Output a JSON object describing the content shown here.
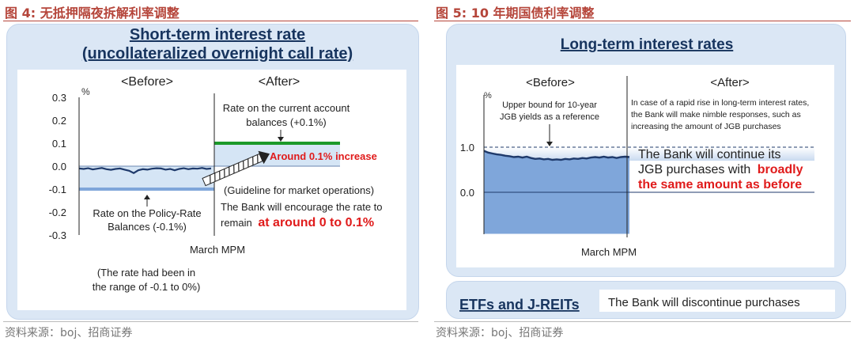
{
  "figures": [
    {
      "number_label": "图 4:",
      "caption": "无抵押隔夜拆解利率调整",
      "source": "资料来源：boj、招商证券"
    },
    {
      "number_label": "图 5:",
      "caption": "10 年期国债利率调整",
      "source": "资料来源：boj、招商证券"
    }
  ],
  "chart_data": [
    {
      "type": "line",
      "title_line1": "Short-term interest rate",
      "title_line2": "(uncollateralized overnight call rate)",
      "ylabel": "%",
      "ylim": [
        -0.3,
        0.3
      ],
      "yticks": [
        "0.3",
        "0.2",
        "0.1",
        "0.0",
        "-0.1",
        "-0.2",
        "-0.3"
      ],
      "xlabel": "March MPM",
      "section_before": "<Before>",
      "section_after": "<After>",
      "series": [
        {
          "values": [
            -0.01,
            -0.012,
            -0.009,
            -0.014,
            -0.011,
            -0.008,
            -0.013,
            -0.016,
            -0.012,
            -0.01,
            -0.015,
            -0.02,
            -0.03,
            -0.018,
            -0.013,
            -0.015,
            -0.011,
            -0.009,
            -0.01,
            -0.015,
            -0.012,
            -0.018,
            -0.012,
            -0.009,
            -0.013,
            -0.01,
            -0.011,
            -0.008,
            -0.012,
            -0.01
          ]
        }
      ],
      "before_range": [
        -0.1,
        0.0
      ],
      "after_range": [
        0.0,
        0.1
      ],
      "current_account_rate": 0.1,
      "policy_rate": -0.1,
      "annotations": {
        "current_account_l1": "Rate on the current account",
        "current_account_l2": "balances (+0.1%)",
        "increase": "Around 0.1% increase",
        "policy_l1": "Rate on the Policy-Rate",
        "policy_l2": "Balances (-0.1%)",
        "guideline": "(Guideline for market operations)",
        "encourage_l1": "The Bank will encourage the rate to",
        "encourage_l2_prefix": "remain",
        "encourage_l2_emph": "at around 0 to 0.1%",
        "range_note_l1": "(The rate had been in",
        "range_note_l2": "the range of -0.1 to 0%)"
      },
      "colors": {
        "band": "#d5e5f5",
        "line": "#1f3a6b",
        "green": "#1c9a2a",
        "blue": "#7fa6da",
        "red": "#e01b1b",
        "title": "#17345e"
      }
    },
    {
      "type": "line",
      "title": "Long-term interest rates",
      "ylabel": "%",
      "yticks": [
        "1.0",
        "0.0"
      ],
      "ylim": [
        -0.1,
        1.2
      ],
      "xlabel": "March MPM",
      "section_before": "<Before>",
      "section_after": "<After>",
      "series": [
        {
          "values": [
            0.92,
            0.88,
            0.86,
            0.84,
            0.83,
            0.81,
            0.8,
            0.78,
            0.79,
            0.77,
            0.79,
            0.76,
            0.74,
            0.75,
            0.73,
            0.74,
            0.72,
            0.73,
            0.72,
            0.74,
            0.73,
            0.75,
            0.74,
            0.76,
            0.75,
            0.77,
            0.78,
            0.77,
            0.79,
            0.77,
            0.78,
            0.76,
            0.78,
            0.79,
            0.78
          ]
        }
      ],
      "upper_bound": 1.0,
      "annotations": {
        "upper_l1": "Upper bound for 10-year",
        "upper_l2": "JGB yields as a reference",
        "after_l1": "In case of a rapid rise in long-term interest rates,",
        "after_l2": "the Bank will make nimble responses, such as",
        "after_l3": "increasing the amount of JGB purchases",
        "continue_l1": "The Bank will continue its",
        "continue_l2_prefix": "JGB purchases with",
        "continue_l2_emph": "broadly",
        "continue_l3_emph": "the same amount as before"
      },
      "etf_label": "ETFs and J-REITs",
      "etf_text": "The Bank will discontinue purchases",
      "colors": {
        "fill": "#7fa6da",
        "fill_light": "#e4edf8",
        "line": "#1f3a6b",
        "red": "#e01b1b",
        "title": "#17345e"
      }
    }
  ]
}
